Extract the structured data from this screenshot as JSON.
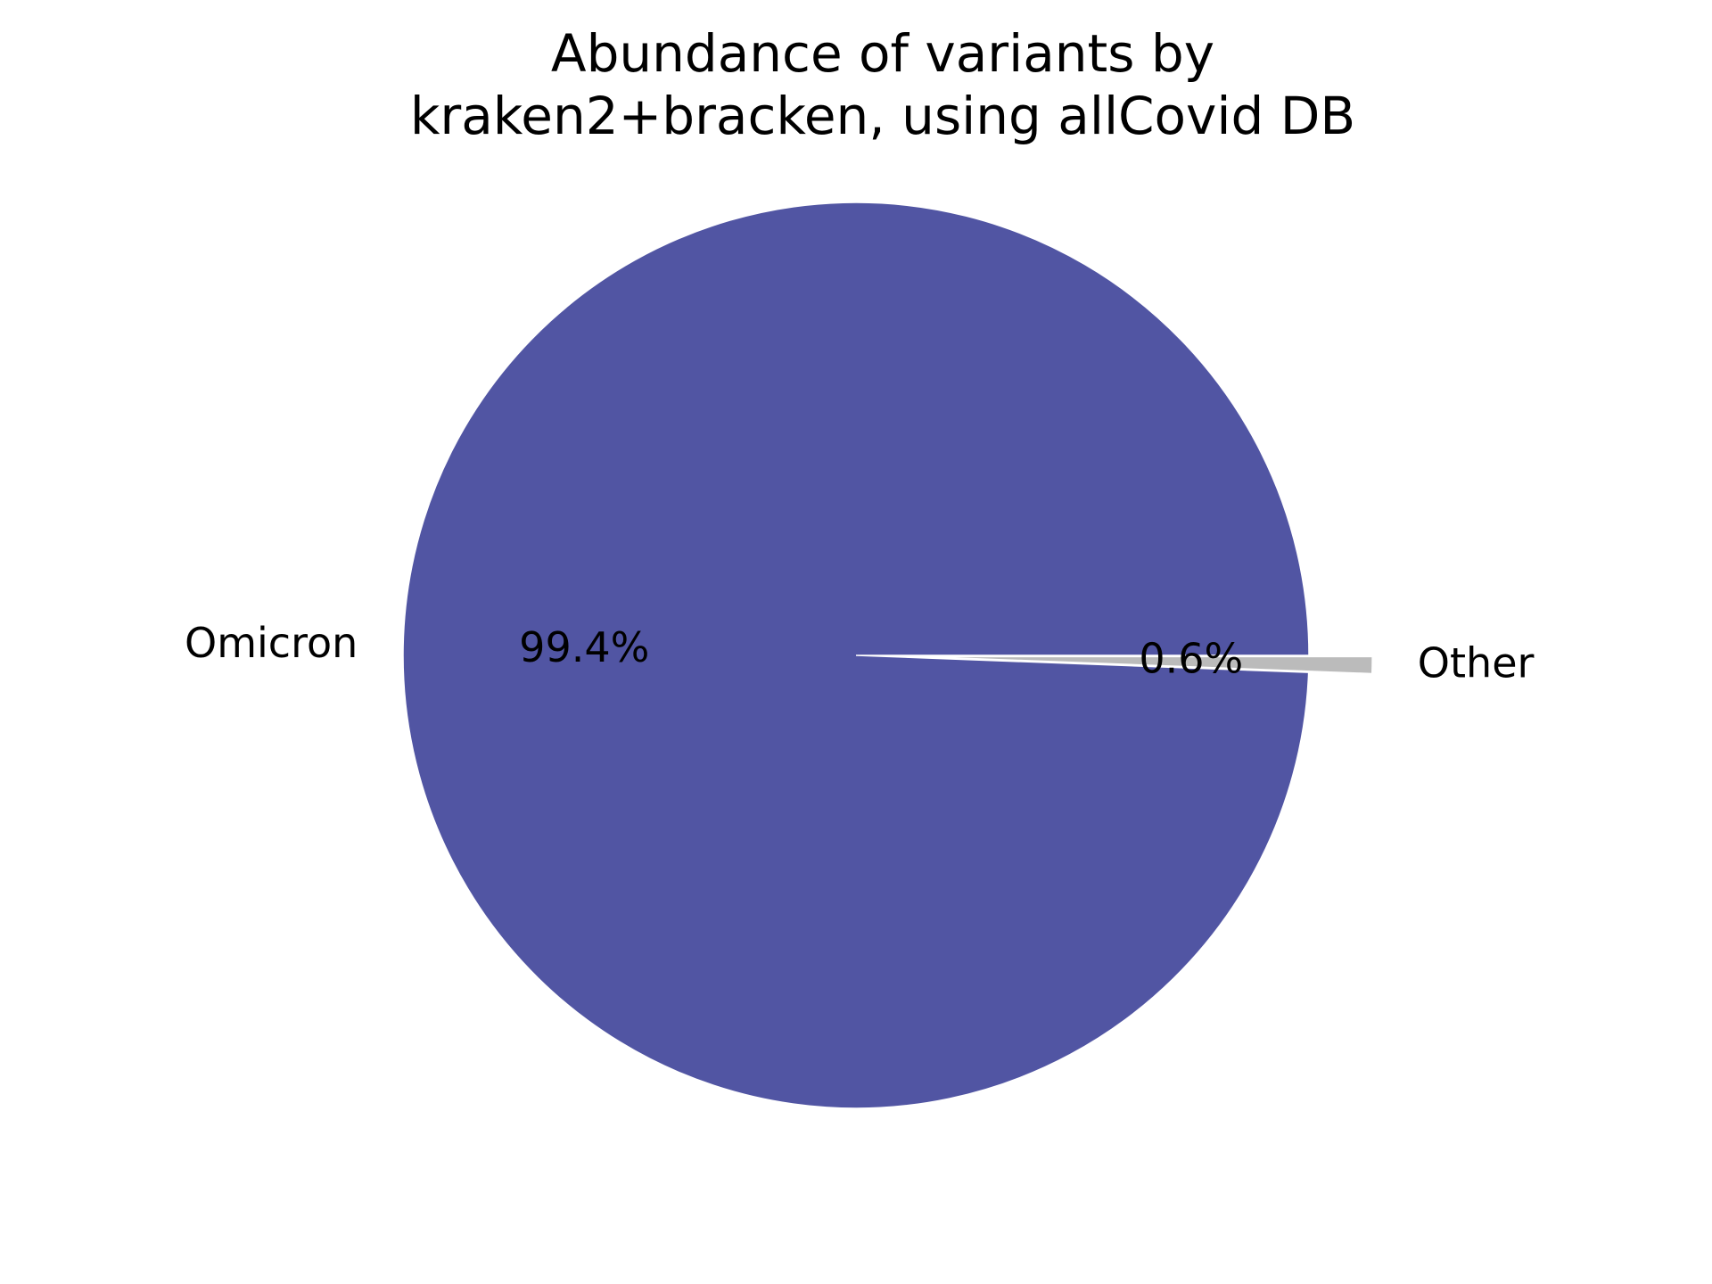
{
  "chart_data": {
    "type": "pie",
    "title": [
      "Abundance of variants by",
      "kraken2+bracken, using allCovid DB"
    ],
    "slices": [
      {
        "label": "Omicron",
        "value": 99.4,
        "pct_label": "99.4%",
        "color": "#5155a3",
        "explode": 0.0
      },
      {
        "label": "Other",
        "value": 0.6,
        "pct_label": "0.6%",
        "color": "#bbbbbb",
        "explode": 0.14
      }
    ],
    "start_angle_deg": 0,
    "direction": "counterclockwise",
    "legend": "none"
  }
}
